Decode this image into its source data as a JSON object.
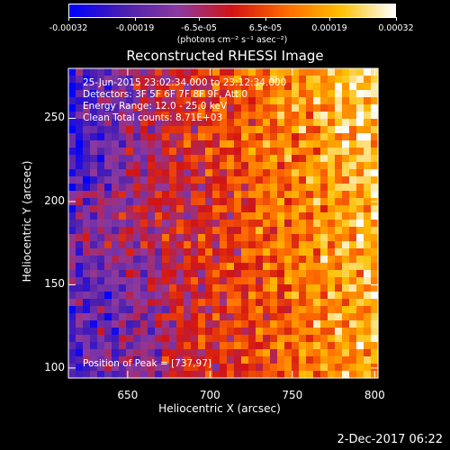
{
  "colorbar": {
    "ticks": [
      "-0.00032",
      "-0.00019",
      "-6.5e-05",
      "6.5e-05",
      "0.00019",
      "0.00032"
    ],
    "tick_values": [
      -0.00032,
      -0.00019,
      -6.5e-05,
      6.5e-05,
      0.00019,
      0.00032
    ],
    "range": [
      -0.00032,
      0.00032
    ],
    "unit": "(photons cm⁻² s⁻¹ asec⁻²)"
  },
  "chart_data": {
    "type": "heatmap",
    "title": "Reconstructed RHESSI Image",
    "xlabel": "Heliocentric X (arcsec)",
    "ylabel": "Heliocentric Y (arcsec)",
    "xlim": [
      614,
      802
    ],
    "ylim": [
      94,
      280
    ],
    "x_ticks": [
      650,
      700,
      750,
      800
    ],
    "y_ticks": [
      100,
      150,
      200,
      250
    ],
    "colormap_colors": [
      "#0000ff",
      "#4b1fb0",
      "#8b3aa0",
      "#d21414",
      "#ff6a00",
      "#ffc000",
      "#ffffff"
    ],
    "peak": [
      737,
      97
    ]
  },
  "annotations": {
    "time": "25-Jun-2015 23:02:34.000 to 23:12:34.000",
    "detectors": "Detectors: 3F 5F 6F 7F 8F 9F, Att 0",
    "energy": "Energy Range: 12.0 - 25.0 keV",
    "clean": "Clean     Total counts: 8.71E+03",
    "peak_text": "Position of Peak = [737,97]"
  },
  "footer": {
    "date": "2-Dec-2017 06:22"
  }
}
